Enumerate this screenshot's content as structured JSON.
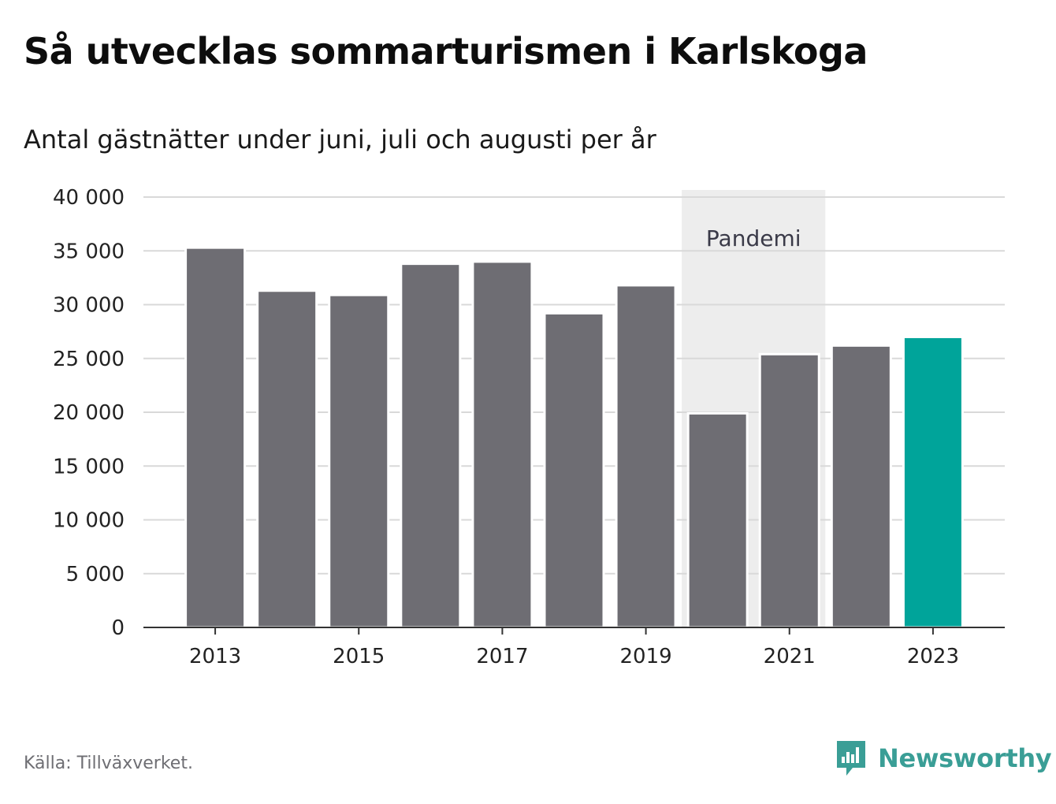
{
  "title": "Så utvecklas sommarturismen i Karlskoga",
  "subtitle": "Antal gästnätter under juni, juli och augusti per år",
  "source": "Källa: Tillväxverket.",
  "brand": {
    "name": "Newsworthy",
    "icon": "newsworthy-logo-icon",
    "color": "#3a9e96"
  },
  "chart_data": {
    "type": "bar",
    "categories": [
      "2013",
      "2014",
      "2015",
      "2016",
      "2017",
      "2018",
      "2019",
      "2020",
      "2021",
      "2022",
      "2023"
    ],
    "values": [
      35300,
      31300,
      30900,
      33800,
      34000,
      29200,
      31800,
      19900,
      25400,
      26200,
      27000
    ],
    "x_tick_labels": [
      "2013",
      "2015",
      "2017",
      "2019",
      "2021",
      "2023"
    ],
    "y_ticks": [
      0,
      5000,
      10000,
      15000,
      20000,
      25000,
      30000,
      35000,
      40000
    ],
    "y_tick_labels": [
      "0",
      "5 000",
      "10 000",
      "15 000",
      "20 000",
      "25 000",
      "30 000",
      "35 000",
      "40 000"
    ],
    "ylim": [
      0,
      40000
    ],
    "grid": true,
    "annotation": {
      "text": "Pandemi",
      "from": "2020",
      "to": "2021"
    },
    "colors": {
      "bar": "#6e6d73",
      "highlight": "#00a49a",
      "grid": "#d9d9d9",
      "shade": "#ededed"
    },
    "highlight_category": "2023"
  }
}
